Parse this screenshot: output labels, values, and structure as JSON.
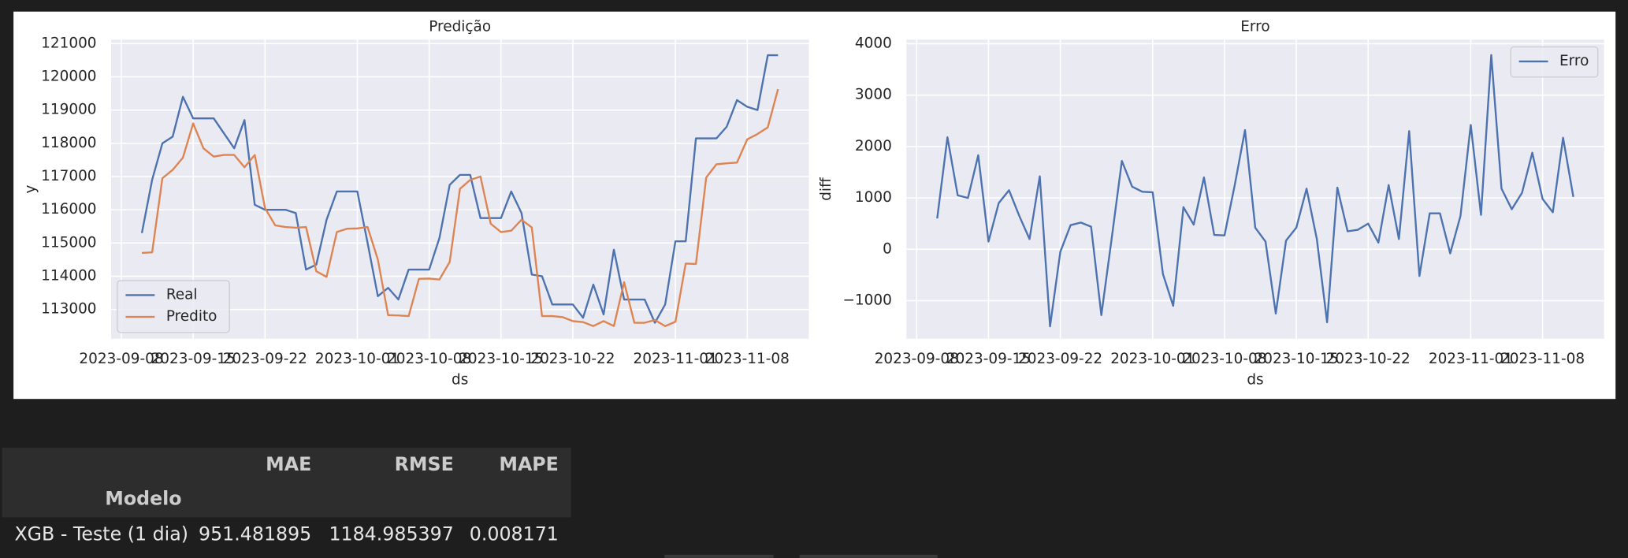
{
  "chart_data": [
    {
      "type": "line",
      "title": "Predição",
      "xlabel": "ds",
      "ylabel": "y",
      "x": [
        "2023-09-10",
        "2023-09-11",
        "2023-09-12",
        "2023-09-13",
        "2023-09-14",
        "2023-09-15",
        "2023-09-16",
        "2023-09-17",
        "2023-09-18",
        "2023-09-19",
        "2023-09-20",
        "2023-09-21",
        "2023-09-22",
        "2023-09-23",
        "2023-09-24",
        "2023-09-25",
        "2023-09-26",
        "2023-09-27",
        "2023-09-28",
        "2023-09-29",
        "2023-09-30",
        "2023-10-01",
        "2023-10-02",
        "2023-10-03",
        "2023-10-04",
        "2023-10-05",
        "2023-10-06",
        "2023-10-07",
        "2023-10-08",
        "2023-10-09",
        "2023-10-10",
        "2023-10-11",
        "2023-10-12",
        "2023-10-13",
        "2023-10-14",
        "2023-10-15",
        "2023-10-16",
        "2023-10-17",
        "2023-10-18",
        "2023-10-19",
        "2023-10-20",
        "2023-10-21",
        "2023-10-22",
        "2023-10-23",
        "2023-10-24",
        "2023-10-25",
        "2023-10-26",
        "2023-10-27",
        "2023-10-28",
        "2023-10-29",
        "2023-10-30",
        "2023-10-31",
        "2023-11-01",
        "2023-11-02",
        "2023-11-03",
        "2023-11-04",
        "2023-11-05",
        "2023-11-06",
        "2023-11-07",
        "2023-11-08",
        "2023-11-09",
        "2023-11-10",
        "2023-11-11"
      ],
      "series": [
        {
          "name": "Real",
          "color": "#4c72b0",
          "values": [
            115300,
            116900,
            118000,
            118200,
            119400,
            118750,
            118750,
            118750,
            118300,
            117850,
            118700,
            116150,
            116000,
            116000,
            116000,
            115900,
            114200,
            114350,
            115700,
            116550,
            116550,
            116550,
            115000,
            113400,
            113650,
            113300,
            114200,
            114200,
            114200,
            115150,
            116750,
            117050,
            117050,
            115750,
            115750,
            115750,
            116550,
            115900,
            114050,
            114000,
            113150,
            113150,
            113150,
            112750,
            113750,
            112850,
            114800,
            113300,
            113300,
            113300,
            112600,
            113150,
            115050,
            115050,
            118150,
            118150,
            118150,
            118500,
            119300,
            119100,
            119000,
            120650,
            120650
          ]
        },
        {
          "name": "Predito",
          "color": "#dd8452",
          "values": [
            114700,
            114720,
            116950,
            117200,
            117570,
            118600,
            117850,
            117600,
            117650,
            117650,
            117280,
            117650,
            116050,
            115530,
            115480,
            115460,
            115480,
            114150,
            113980,
            115330,
            115430,
            115440,
            115480,
            114500,
            112830,
            112820,
            112800,
            113920,
            113930,
            113900,
            114430,
            116630,
            116900,
            117000,
            115580,
            115330,
            115370,
            115700,
            115470,
            112800,
            112800,
            112770,
            112650,
            112620,
            112500,
            112650,
            112500,
            113820,
            112600,
            112600,
            112680,
            112500,
            112630,
            114380,
            114370,
            116970,
            117370,
            117400,
            117420,
            118120,
            118280,
            118480,
            119630
          ]
        }
      ],
      "xlim": [
        "2023-09-07",
        "2023-11-14"
      ],
      "xticks": [
        "2023-09-08",
        "2023-09-15",
        "2023-09-22",
        "2023-10-01",
        "2023-10-08",
        "2023-10-15",
        "2023-10-22",
        "2023-11-01",
        "2023-11-08"
      ],
      "ylim": [
        112120,
        121120
      ],
      "yticks": [
        113000,
        114000,
        115000,
        116000,
        117000,
        118000,
        119000,
        120000,
        121000
      ],
      "grid": true,
      "legend": "lower left"
    },
    {
      "type": "line",
      "title": "Erro",
      "xlabel": "ds",
      "ylabel": "diff",
      "x": [
        "2023-09-10",
        "2023-09-11",
        "2023-09-12",
        "2023-09-13",
        "2023-09-14",
        "2023-09-15",
        "2023-09-16",
        "2023-09-17",
        "2023-09-18",
        "2023-09-19",
        "2023-09-20",
        "2023-09-21",
        "2023-09-22",
        "2023-09-23",
        "2023-09-24",
        "2023-09-25",
        "2023-09-26",
        "2023-09-27",
        "2023-09-28",
        "2023-09-29",
        "2023-09-30",
        "2023-10-01",
        "2023-10-02",
        "2023-10-03",
        "2023-10-04",
        "2023-10-05",
        "2023-10-06",
        "2023-10-07",
        "2023-10-08",
        "2023-10-09",
        "2023-10-10",
        "2023-10-11",
        "2023-10-12",
        "2023-10-13",
        "2023-10-14",
        "2023-10-15",
        "2023-10-16",
        "2023-10-17",
        "2023-10-18",
        "2023-10-19",
        "2023-10-20",
        "2023-10-21",
        "2023-10-22",
        "2023-10-23",
        "2023-10-24",
        "2023-10-25",
        "2023-10-26",
        "2023-10-27",
        "2023-10-28",
        "2023-10-29",
        "2023-10-30",
        "2023-10-31",
        "2023-11-01",
        "2023-11-02",
        "2023-11-03",
        "2023-11-04",
        "2023-11-05",
        "2023-11-06",
        "2023-11-07",
        "2023-11-08",
        "2023-11-09",
        "2023-11-10",
        "2023-11-11"
      ],
      "series": [
        {
          "name": "Erro",
          "color": "#4c72b0",
          "values": [
            600,
            2180,
            1050,
            1000,
            1830,
            150,
            900,
            1150,
            650,
            200,
            1420,
            -1500,
            -50,
            470,
            520,
            440,
            -1280,
            200,
            1720,
            1220,
            1120,
            1110,
            -480,
            -1100,
            820,
            480,
            1400,
            280,
            270,
            1250,
            2320,
            420,
            150,
            -1250,
            170,
            420,
            1180,
            200,
            -1420,
            1200,
            350,
            380,
            500,
            130,
            1250,
            200,
            2300,
            -520,
            700,
            700,
            -80,
            650,
            2420,
            670,
            3780,
            1180,
            780,
            1100,
            1880,
            980,
            720,
            2170,
            1020
          ]
        }
      ],
      "xlim": [
        "2023-09-07",
        "2023-11-14"
      ],
      "xticks": [
        "2023-09-08",
        "2023-09-15",
        "2023-09-22",
        "2023-10-01",
        "2023-10-08",
        "2023-10-15",
        "2023-10-22",
        "2023-11-01",
        "2023-11-08"
      ],
      "ylim": [
        -1740,
        4080
      ],
      "yticks": [
        {
          "value": -1000,
          "label": "−1000"
        },
        0,
        1000,
        2000,
        3000,
        4000
      ],
      "grid": true,
      "legend": "upper right"
    }
  ],
  "table": {
    "columns": [
      "MAE",
      "RMSE",
      "MAPE"
    ],
    "index_name": "Modelo",
    "rows": [
      {
        "label": "XGB - Teste (1 dia)",
        "values": [
          951.481895,
          1184.985397,
          0.008171
        ]
      }
    ]
  }
}
